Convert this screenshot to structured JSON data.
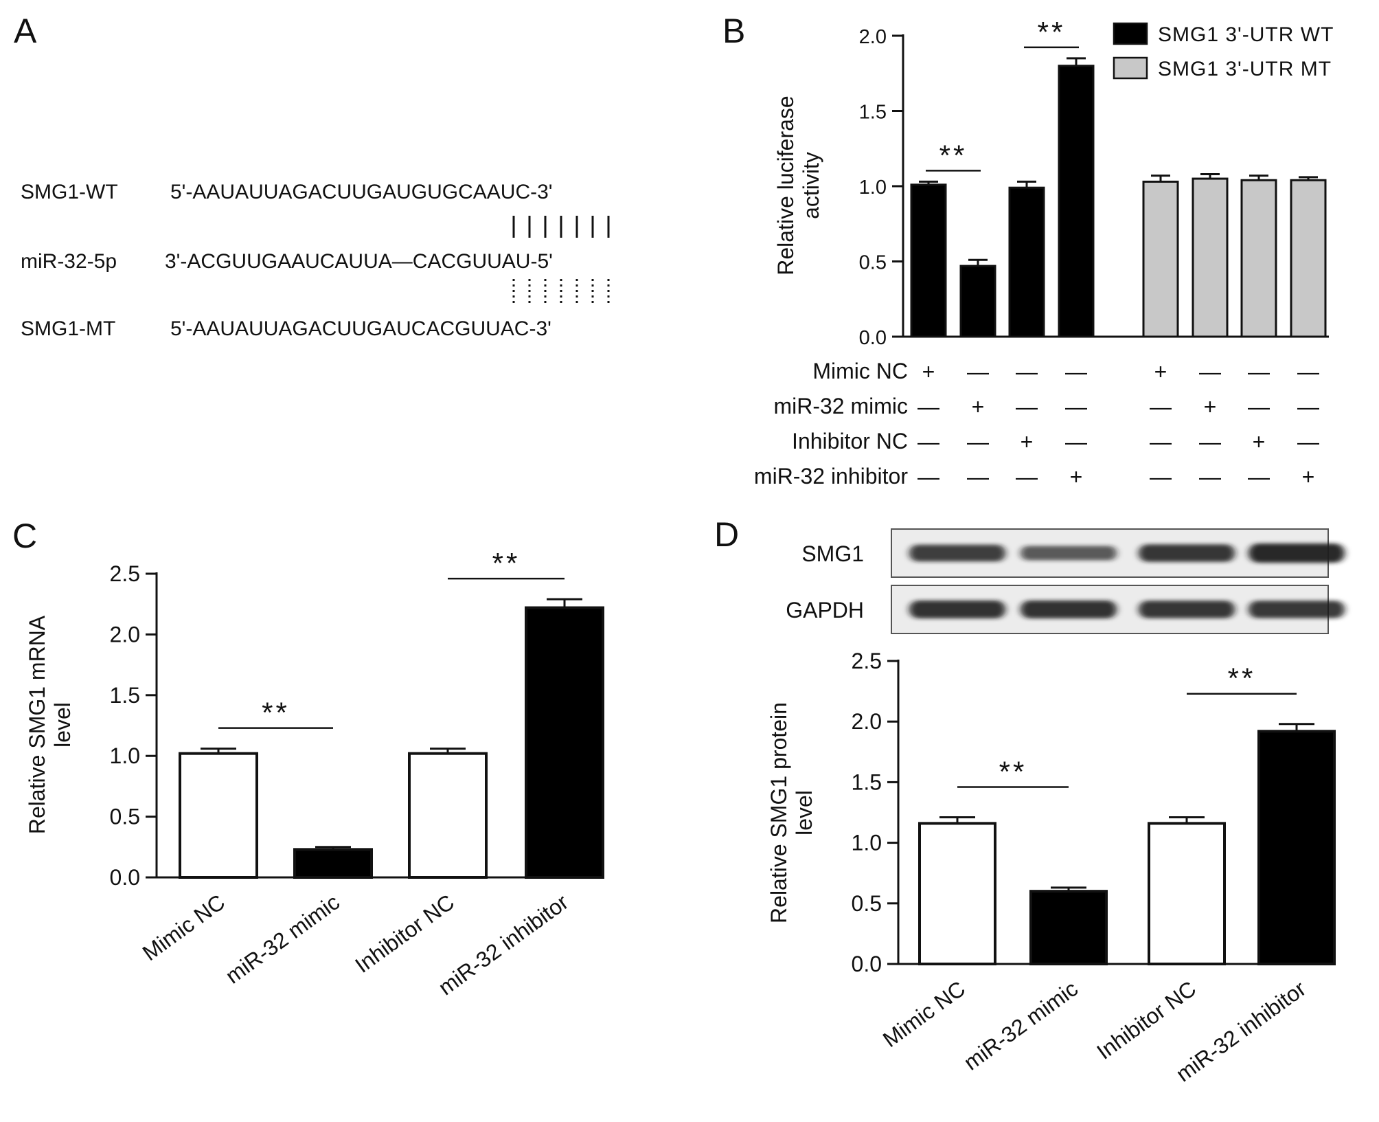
{
  "panelA": {
    "letter": "A",
    "rows": [
      {
        "label": "SMG1-WT",
        "seq": "5'-AAUAUUAGACUUGAUGUGCAAUC-3'"
      },
      {
        "label": "miR-32-5p",
        "seq": "3'-ACGUUGAAUCAUUA—CACGUUAU-5'"
      },
      {
        "label": "SMG1-MT",
        "seq": "5'-AAUAUUAGACUUGAUCACGUUAC-3'"
      }
    ],
    "pair_count": 7
  },
  "chart_data": [
    {
      "panel": "B",
      "type": "bar",
      "ylabel": "Relative luciferase activity",
      "ylim": [
        0,
        2.0
      ],
      "yticks": [
        "0.0",
        "0.5",
        "1.0",
        "1.5",
        "2.0"
      ],
      "series": [
        {
          "name": "SMG1 3'-UTR WT",
          "color": "#000000",
          "values": [
            1.01,
            0.47,
            0.99,
            1.8
          ],
          "errors": [
            0.02,
            0.04,
            0.04,
            0.05
          ]
        },
        {
          "name": "SMG1 3'-UTR MT",
          "color": "#c8c8c8",
          "values": [
            1.03,
            1.05,
            1.04,
            1.04
          ],
          "errors": [
            0.04,
            0.03,
            0.03,
            0.02
          ]
        }
      ],
      "condition_rows": [
        {
          "label": "Mimic NC",
          "marks": [
            "+",
            "—",
            "—",
            "—",
            "+",
            "—",
            "—",
            "—"
          ]
        },
        {
          "label": "miR-32 mimic",
          "marks": [
            "—",
            "+",
            "—",
            "—",
            "—",
            "+",
            "—",
            "—"
          ]
        },
        {
          "label": "Inhibitor NC",
          "marks": [
            "—",
            "—",
            "+",
            "—",
            "—",
            "—",
            "+",
            "—"
          ]
        },
        {
          "label": "miR-32 inhibitor",
          "marks": [
            "—",
            "—",
            "—",
            "+",
            "—",
            "—",
            "—",
            "+"
          ]
        }
      ],
      "significance": [
        {
          "between": [
            0,
            1
          ],
          "label": "**"
        },
        {
          "between": [
            2,
            3
          ],
          "label": "**"
        }
      ],
      "legend": "top-right"
    },
    {
      "panel": "C",
      "type": "bar",
      "ylabel": "Relative SMG1 mRNA level",
      "ylim": [
        0,
        2.5
      ],
      "yticks": [
        "0.0",
        "0.5",
        "1.0",
        "1.5",
        "2.0",
        "2.5"
      ],
      "categories": [
        "Mimic NC",
        "miR-32 mimic",
        "Inhibitor NC",
        "miR-32 inhibitor"
      ],
      "values": [
        1.02,
        0.23,
        1.02,
        2.22
      ],
      "errors": [
        0.04,
        0.02,
        0.04,
        0.07
      ],
      "fills": [
        "#ffffff",
        "#000000",
        "#ffffff",
        "#000000"
      ],
      "significance": [
        {
          "between": [
            0,
            1
          ],
          "label": "**"
        },
        {
          "between": [
            2,
            3
          ],
          "label": "**"
        }
      ]
    },
    {
      "panel": "D",
      "type": "bar",
      "ylabel": "Relative SMG1 protein level",
      "ylim": [
        0,
        2.5
      ],
      "yticks": [
        "0.0",
        "0.5",
        "1.0",
        "1.5",
        "2.0",
        "2.5"
      ],
      "categories": [
        "Mimic NC",
        "miR-32 mimic",
        "Inhibitor NC",
        "miR-32 inhibitor"
      ],
      "values": [
        1.16,
        0.6,
        1.16,
        1.92
      ],
      "errors": [
        0.05,
        0.03,
        0.05,
        0.06
      ],
      "fills": [
        "#ffffff",
        "#000000",
        "#ffffff",
        "#000000"
      ],
      "significance": [
        {
          "between": [
            0,
            1
          ],
          "label": "**"
        },
        {
          "between": [
            2,
            3
          ],
          "label": "**"
        }
      ],
      "blot_rows": [
        {
          "label": "SMG1",
          "band_intensity": [
            0.75,
            0.5,
            0.82,
            1.0
          ]
        },
        {
          "label": "GAPDH",
          "band_intensity": [
            0.85,
            0.85,
            0.82,
            0.8
          ]
        }
      ]
    }
  ]
}
